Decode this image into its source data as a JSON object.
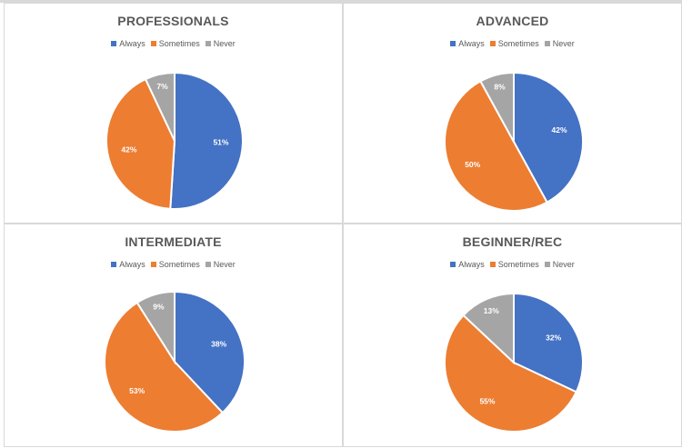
{
  "colors": {
    "Always": "#4472c4",
    "Sometimes": "#ed7d31",
    "Never": "#a5a5a5"
  },
  "chart_data": [
    {
      "type": "pie",
      "title": "PROFESSIONALS",
      "categories": [
        "Always",
        "Sometimes",
        "Never"
      ],
      "values": [
        51,
        42,
        7
      ],
      "labels": [
        "51%",
        "42%",
        "7%"
      ],
      "legend": "top"
    },
    {
      "type": "pie",
      "title": "ADVANCED",
      "categories": [
        "Always",
        "Sometimes",
        "Never"
      ],
      "values": [
        42,
        50,
        8
      ],
      "labels": [
        "42%",
        "50%",
        "8%"
      ],
      "legend": "top"
    },
    {
      "type": "pie",
      "title": "INTERMEDIATE",
      "categories": [
        "Always",
        "Sometimes",
        "Never"
      ],
      "values": [
        38,
        53,
        9
      ],
      "labels": [
        "38%",
        "53%",
        "9%"
      ],
      "legend": "top"
    },
    {
      "type": "pie",
      "title": "BEGINNER/REC",
      "categories": [
        "Always",
        "Sometimes",
        "Never"
      ],
      "values": [
        32,
        55,
        13
      ],
      "labels": [
        "32%",
        "55%",
        "13%"
      ],
      "legend": "top"
    }
  ]
}
